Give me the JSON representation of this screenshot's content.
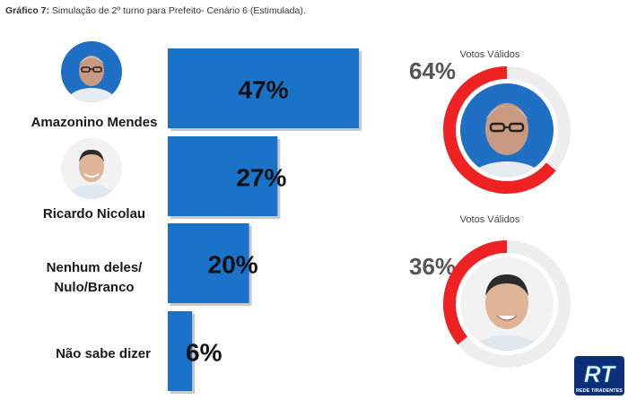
{
  "caption": {
    "prefix": "Gráfico 7:",
    "text": " Simulação de 2º turno para Prefeito- Cenário 6 (Estimulada)."
  },
  "colors": {
    "bar": "#1a73c9",
    "ring_active": "#ee2222",
    "ring_track": "#eeeeee"
  },
  "chart_data": [
    {
      "type": "bar",
      "orientation": "horizontal",
      "categories": [
        "Amazonino Mendes",
        "Ricardo Nicolau",
        "Nenhum deles/ Nulo/Branco",
        "Não sabe dizer"
      ],
      "values": [
        47,
        27,
        20,
        6
      ],
      "value_labels": [
        "47%",
        "27%",
        "20%",
        "6%"
      ],
      "unit": "%",
      "xlim": [
        0,
        50
      ]
    },
    {
      "type": "pie",
      "style": "donut",
      "title": "Votos Válidos",
      "segments": [
        {
          "label": "Amazonino Mendes",
          "value": 64
        }
      ],
      "value_label": "64%"
    },
    {
      "type": "pie",
      "style": "donut",
      "title": "Votos Válidos",
      "segments": [
        {
          "label": "Ricardo Nicolau",
          "value": 36
        }
      ],
      "value_label": "36%"
    }
  ],
  "candidates": {
    "c1": "Amazonino Mendes",
    "c2": "Ricardo Nicolau",
    "c3a": "Nenhum deles/",
    "c3b": "Nulo/Branco",
    "c4": "Não sabe dizer"
  },
  "donut1": {
    "title": "Votos Válidos",
    "label": "64%",
    "value": 64
  },
  "donut2": {
    "title": "Votos Válidos",
    "label": "36%",
    "value": 36
  },
  "logo": {
    "text": "RT",
    "subtitle": "REDE TIRADENTES"
  }
}
